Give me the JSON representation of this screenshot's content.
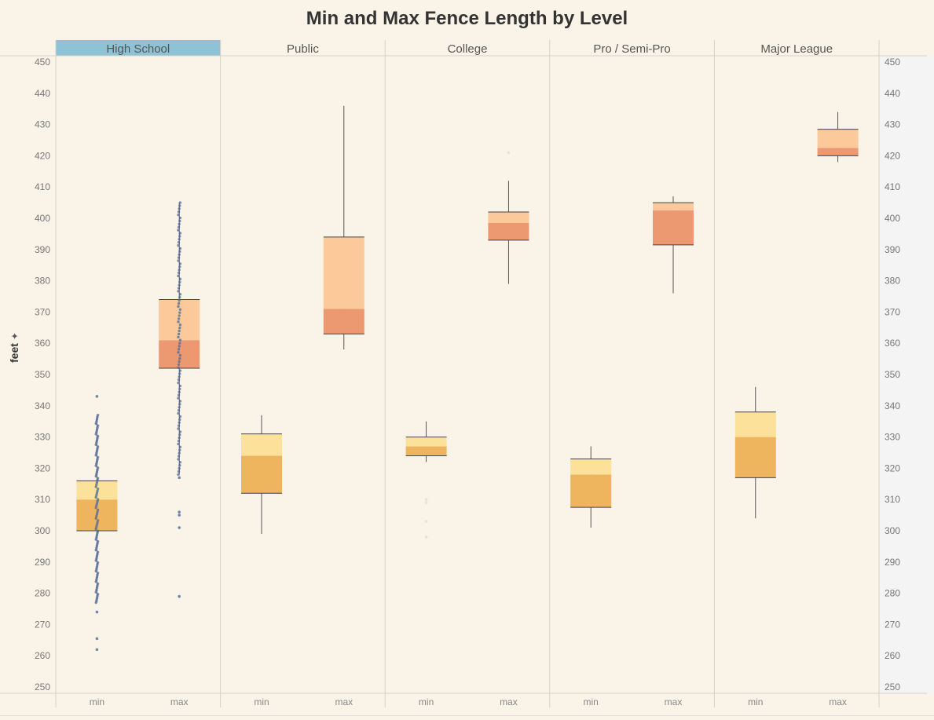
{
  "chart_data": {
    "type": "boxplot",
    "title": "Min and Max Fence Length by Level",
    "ylabel": "feet",
    "ylim": [
      250,
      450
    ],
    "yticks": [
      250,
      260,
      270,
      280,
      290,
      300,
      310,
      320,
      330,
      340,
      350,
      360,
      370,
      380,
      390,
      400,
      410,
      420,
      430,
      440,
      450
    ],
    "categories": [
      "min",
      "max"
    ],
    "highlighted_panel": "High School",
    "colors": {
      "min_upper": "#fbe19a",
      "min_lower": "#efb45e",
      "max_upper": "#fbc99a",
      "max_lower": "#ec9870",
      "highlight": "#8ec3d6",
      "points": "#4e6a9a"
    },
    "panels": [
      {
        "name": "High School",
        "boxes": [
          {
            "category": "min",
            "whisker_low": 277,
            "q1": 300,
            "median": 310,
            "q3": 316,
            "whisker_high": 337,
            "outliers": [
              343,
              274,
              265.5,
              262
            ]
          },
          {
            "category": "max",
            "whisker_low": 318,
            "q1": 352,
            "median": 361,
            "q3": 374,
            "whisker_high": 405,
            "outliers": [
              317,
              306,
              305,
              301,
              279
            ]
          }
        ]
      },
      {
        "name": "Public",
        "boxes": [
          {
            "category": "min",
            "whisker_low": 299,
            "q1": 312,
            "median": 324,
            "q3": 331,
            "whisker_high": 337,
            "outliers": []
          },
          {
            "category": "max",
            "whisker_low": 358,
            "q1": 363,
            "median": 371,
            "q3": 394,
            "whisker_high": 436,
            "outliers": []
          }
        ]
      },
      {
        "name": "College",
        "boxes": [
          {
            "category": "min",
            "whisker_low": 322,
            "q1": 324,
            "median": 327,
            "q3": 330,
            "whisker_high": 335,
            "outliers": [
              310,
              309,
              303,
              298
            ]
          },
          {
            "category": "max",
            "whisker_low": 379,
            "q1": 393,
            "median": 398.5,
            "q3": 402,
            "whisker_high": 412,
            "outliers": [
              421
            ]
          }
        ]
      },
      {
        "name": "Pro / Semi-Pro",
        "boxes": [
          {
            "category": "min",
            "whisker_low": 301,
            "q1": 307.5,
            "median": 318,
            "q3": 323,
            "whisker_high": 327,
            "outliers": []
          },
          {
            "category": "max",
            "whisker_low": 376,
            "q1": 391.5,
            "median": 402.5,
            "q3": 405,
            "whisker_high": 407,
            "outliers": []
          }
        ]
      },
      {
        "name": "Major League",
        "boxes": [
          {
            "category": "min",
            "whisker_low": 304,
            "q1": 317,
            "median": 330,
            "q3": 338,
            "whisker_high": 346,
            "outliers": []
          },
          {
            "category": "max",
            "whisker_low": 418,
            "q1": 420,
            "median": 422.5,
            "q3": 428.5,
            "whisker_high": 434,
            "outliers": []
          }
        ]
      }
    ]
  }
}
